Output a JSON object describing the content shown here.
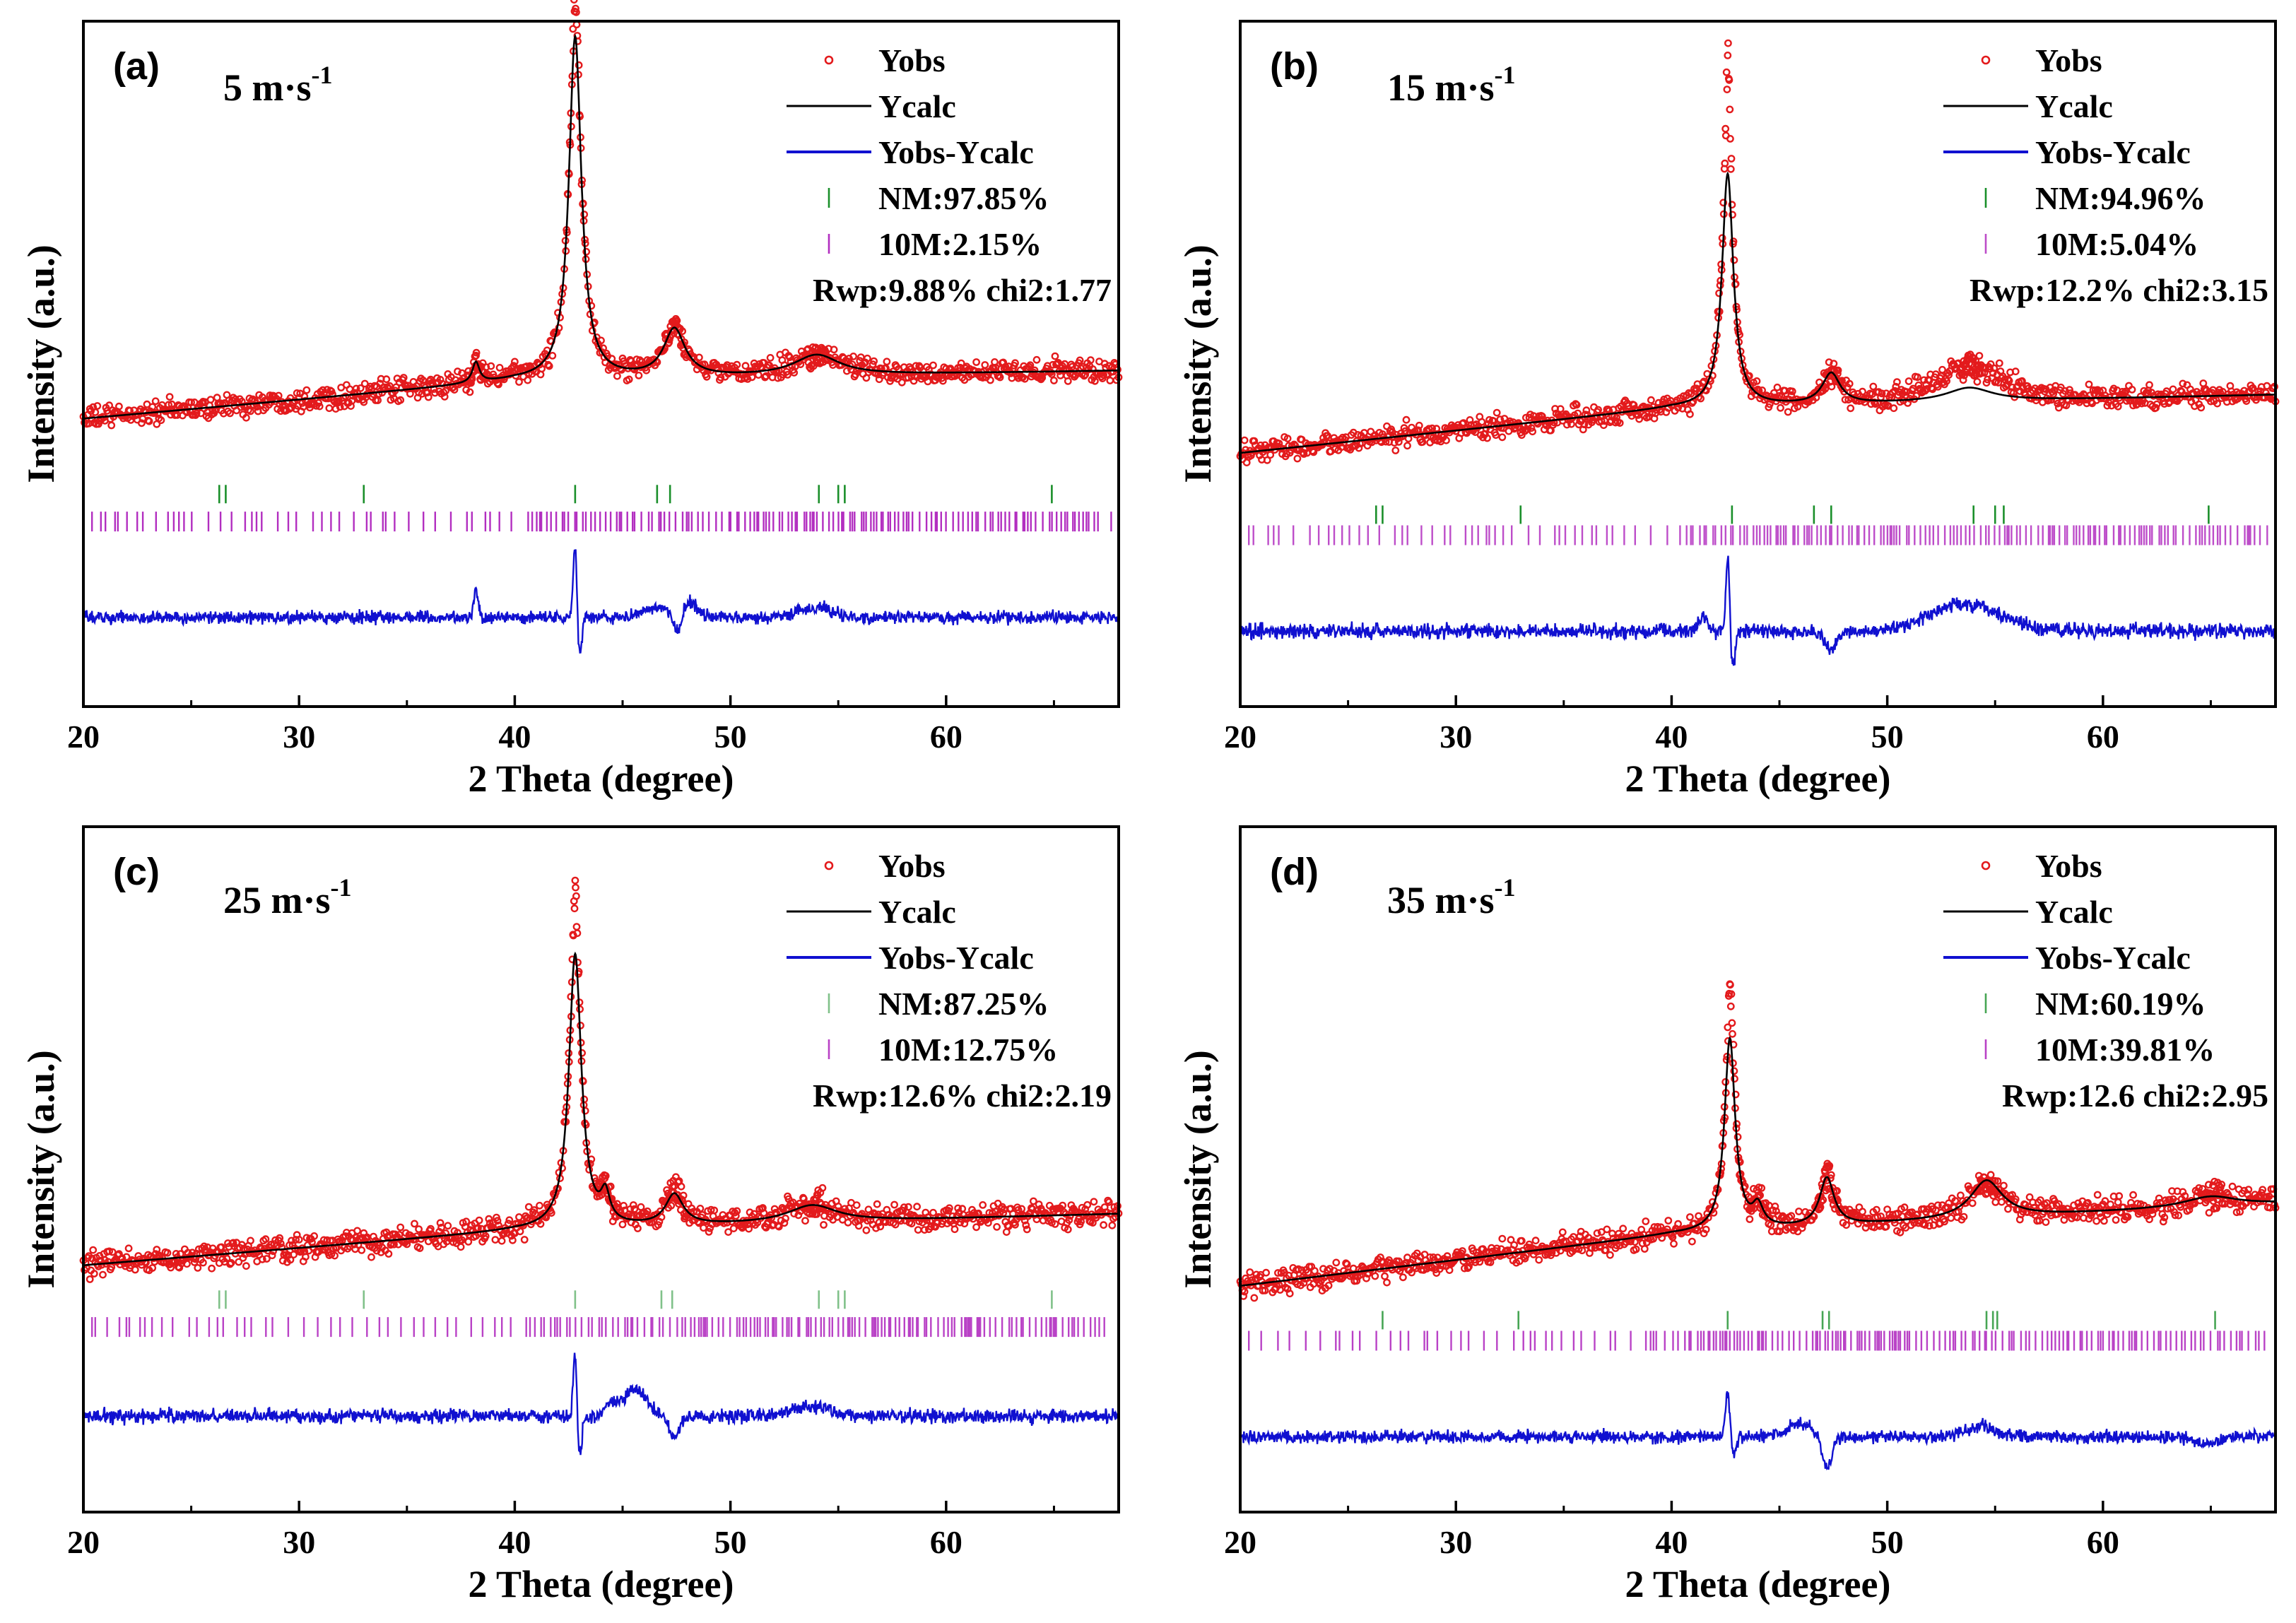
{
  "colors": {
    "obs": "#e31a1c",
    "calc": "#000000",
    "diff": "#1010d0",
    "nm_tick": "#1a8f2a",
    "m10_tick": "#b22ec0",
    "axis": "#000000"
  },
  "chart_data": [
    {
      "type": "line",
      "panel_label": "(a)",
      "title": "5 m·s",
      "title_sup": "-1",
      "xlabel": "2 Theta (degree)",
      "ylabel": "Intensity (a.u.)",
      "xlim": [
        20,
        68
      ],
      "ylim": [
        0,
        100
      ],
      "xticks": [
        20,
        30,
        40,
        50,
        60
      ],
      "legend": {
        "position": "top-right",
        "entries": [
          "Yobs",
          "Ycalc",
          "Yobs-Ycalc",
          "NM:97.85%",
          "10M:2.15%"
        ],
        "stats": "Rwp:9.88% chi2:1.77"
      },
      "baseline": [
        [
          20,
          42
        ],
        [
          40,
          47.5
        ],
        [
          68,
          49
        ]
      ],
      "peaks": [
        {
          "x": 38.2,
          "h": 3,
          "w": 0.2
        },
        {
          "x": 42.8,
          "h": 50,
          "w": 0.35
        },
        {
          "x": 47.4,
          "h": 7,
          "w": 0.6
        },
        {
          "x": 54.0,
          "h": 3,
          "w": 1.3
        }
      ],
      "obs_peaks": [
        {
          "x": 42.8,
          "h": 6
        }
      ],
      "obs_noise": 1.0,
      "humps": [],
      "diff_level": 13,
      "diff_features": [
        {
          "x": 38.2,
          "a": 4,
          "w": 0.15
        },
        {
          "x": 42.8,
          "a": 11,
          "w": 0.12
        },
        {
          "x": 43.0,
          "a": -6,
          "w": 0.15
        },
        {
          "x": 46.8,
          "a": 1.5,
          "w": 1.2
        },
        {
          "x": 47.5,
          "a": -3,
          "w": 0.3
        },
        {
          "x": 48.2,
          "a": 2,
          "w": 0.4
        },
        {
          "x": 54.0,
          "a": 1.5,
          "w": 1.2
        }
      ],
      "diff_noise": 0.7,
      "nm_ticks": [
        26.3,
        26.6,
        33.0,
        42.8,
        46.6,
        47.2,
        54.1,
        55.0,
        55.3,
        64.9
      ],
      "nm_alpha": 1.0,
      "m10_alpha": 1.0,
      "nm_level": 31,
      "m10_level": 27
    },
    {
      "type": "line",
      "panel_label": "(b)",
      "title": "15 m·s",
      "title_sup": "-1",
      "xlabel": "2 Theta (degree)",
      "ylabel": "Intensity (a.u.)",
      "xlim": [
        20,
        68
      ],
      "ylim": [
        0,
        100
      ],
      "xticks": [
        20,
        30,
        40,
        50,
        60
      ],
      "legend": {
        "position": "top-right",
        "entries": [
          "Yobs",
          "Ycalc",
          "Yobs-Ycalc",
          "NM:94.96%",
          "10M:5.04%"
        ],
        "stats": "Rwp:12.2% chi2:3.15"
      },
      "baseline": [
        [
          20,
          37
        ],
        [
          40,
          43.5
        ],
        [
          68,
          45.5
        ]
      ],
      "peaks": [
        {
          "x": 42.6,
          "h": 34,
          "w": 0.32
        },
        {
          "x": 47.4,
          "h": 4.5,
          "w": 0.5
        },
        {
          "x": 53.8,
          "h": 2,
          "w": 1.3
        }
      ],
      "obs_peaks": [
        {
          "x": 42.6,
          "h": 18
        }
      ],
      "obs_noise": 1.0,
      "humps": [
        {
          "x": 53.8,
          "h": 3.5,
          "w": 2.5
        }
      ],
      "diff_level": 11,
      "diff_features": [
        {
          "x": 42.6,
          "a": 11,
          "w": 0.12
        },
        {
          "x": 42.85,
          "a": -5,
          "w": 0.15
        },
        {
          "x": 41.5,
          "a": 2,
          "w": 0.3
        },
        {
          "x": 47.4,
          "a": -3,
          "w": 0.35
        },
        {
          "x": 53.6,
          "a": 4,
          "w": 2.3
        }
      ],
      "diff_noise": 0.8,
      "nm_ticks": [
        26.3,
        26.6,
        33.0,
        42.8,
        46.6,
        47.4,
        54.0,
        55.0,
        55.4,
        64.9
      ],
      "nm_alpha": 1.0,
      "m10_alpha": 0.85,
      "nm_level": 28,
      "m10_level": 25
    },
    {
      "type": "line",
      "panel_label": "(c)",
      "title": "25 m·s",
      "title_sup": "-1",
      "xlabel": "2 Theta (degree)",
      "ylabel": "Intensity (a.u.)",
      "xlim": [
        20,
        68
      ],
      "ylim": [
        0,
        100
      ],
      "xticks": [
        20,
        30,
        40,
        50,
        60
      ],
      "legend": {
        "position": "top-right",
        "entries": [
          "Yobs",
          "Ycalc",
          "Yobs-Ycalc",
          "NM:87.25%",
          "10M:12.75%"
        ],
        "stats": "Rwp:12.6% chi2:2.19"
      },
      "baseline": [
        [
          20,
          36
        ],
        [
          40,
          41
        ],
        [
          68,
          43.5
        ]
      ],
      "peaks": [
        {
          "x": 42.8,
          "h": 40,
          "w": 0.35
        },
        {
          "x": 44.2,
          "h": 4,
          "w": 0.25
        },
        {
          "x": 47.4,
          "h": 4.5,
          "w": 0.5
        },
        {
          "x": 53.8,
          "h": 2.5,
          "w": 1.4
        }
      ],
      "obs_peaks": [
        {
          "x": 42.8,
          "h": 10
        }
      ],
      "obs_noise": 1.1,
      "humps": [],
      "diff_level": 14,
      "diff_features": [
        {
          "x": 42.8,
          "a": 10,
          "w": 0.12
        },
        {
          "x": 43.0,
          "a": -6,
          "w": 0.15
        },
        {
          "x": 44.5,
          "a": 2,
          "w": 0.4
        },
        {
          "x": 45.6,
          "a": 4,
          "w": 0.7
        },
        {
          "x": 47.4,
          "a": -3,
          "w": 0.35
        },
        {
          "x": 53.8,
          "a": 1.5,
          "w": 1.2
        }
      ],
      "diff_noise": 0.8,
      "nm_ticks": [
        26.3,
        26.6,
        33.0,
        42.8,
        46.8,
        47.3,
        54.1,
        55.0,
        55.3,
        64.9
      ],
      "nm_alpha": 0.55,
      "m10_alpha": 0.9,
      "nm_level": 31,
      "m10_level": 27
    },
    {
      "type": "line",
      "panel_label": "(d)",
      "title": "35 m·s",
      "title_sup": "-1",
      "xlabel": "2 Theta (degree)",
      "ylabel": "Intensity (a.u.)",
      "xlim": [
        20,
        68
      ],
      "ylim": [
        0,
        100
      ],
      "xticks": [
        20,
        30,
        40,
        50,
        60
      ],
      "legend": {
        "position": "top-right",
        "entries": [
          "Yobs",
          "Ycalc",
          "Yobs-Ycalc",
          "NM:60.19%",
          "10M:39.81%"
        ],
        "stats": "Rwp:12.6 chi2:2.95"
      },
      "baseline": [
        [
          20,
          33
        ],
        [
          40,
          40.5
        ],
        [
          68,
          45
        ]
      ],
      "peaks": [
        {
          "x": 42.7,
          "h": 28,
          "w": 0.3
        },
        {
          "x": 44.0,
          "h": 3,
          "w": 0.3
        },
        {
          "x": 47.2,
          "h": 7,
          "w": 0.4
        },
        {
          "x": 54.6,
          "h": 5.5,
          "w": 0.9
        },
        {
          "x": 65.0,
          "h": 1.5,
          "w": 1.5
        }
      ],
      "obs_peaks": [
        {
          "x": 42.7,
          "h": 8
        }
      ],
      "obs_noise": 1.1,
      "humps": [],
      "diff_level": 11,
      "diff_features": [
        {
          "x": 42.6,
          "a": 6,
          "w": 0.15
        },
        {
          "x": 42.9,
          "a": -3,
          "w": 0.15
        },
        {
          "x": 46.0,
          "a": 2,
          "w": 0.8
        },
        {
          "x": 47.2,
          "a": -4.5,
          "w": 0.35
        },
        {
          "x": 54.4,
          "a": 1.5,
          "w": 0.9
        },
        {
          "x": 64.8,
          "a": -1,
          "w": 0.8
        }
      ],
      "diff_noise": 0.7,
      "nm_ticks": [
        26.6,
        32.9,
        42.6,
        47.0,
        47.3,
        54.6,
        54.9,
        55.1,
        65.2
      ],
      "nm_alpha": 0.8,
      "m10_alpha": 0.9,
      "nm_level": 28,
      "m10_level": 25
    }
  ]
}
